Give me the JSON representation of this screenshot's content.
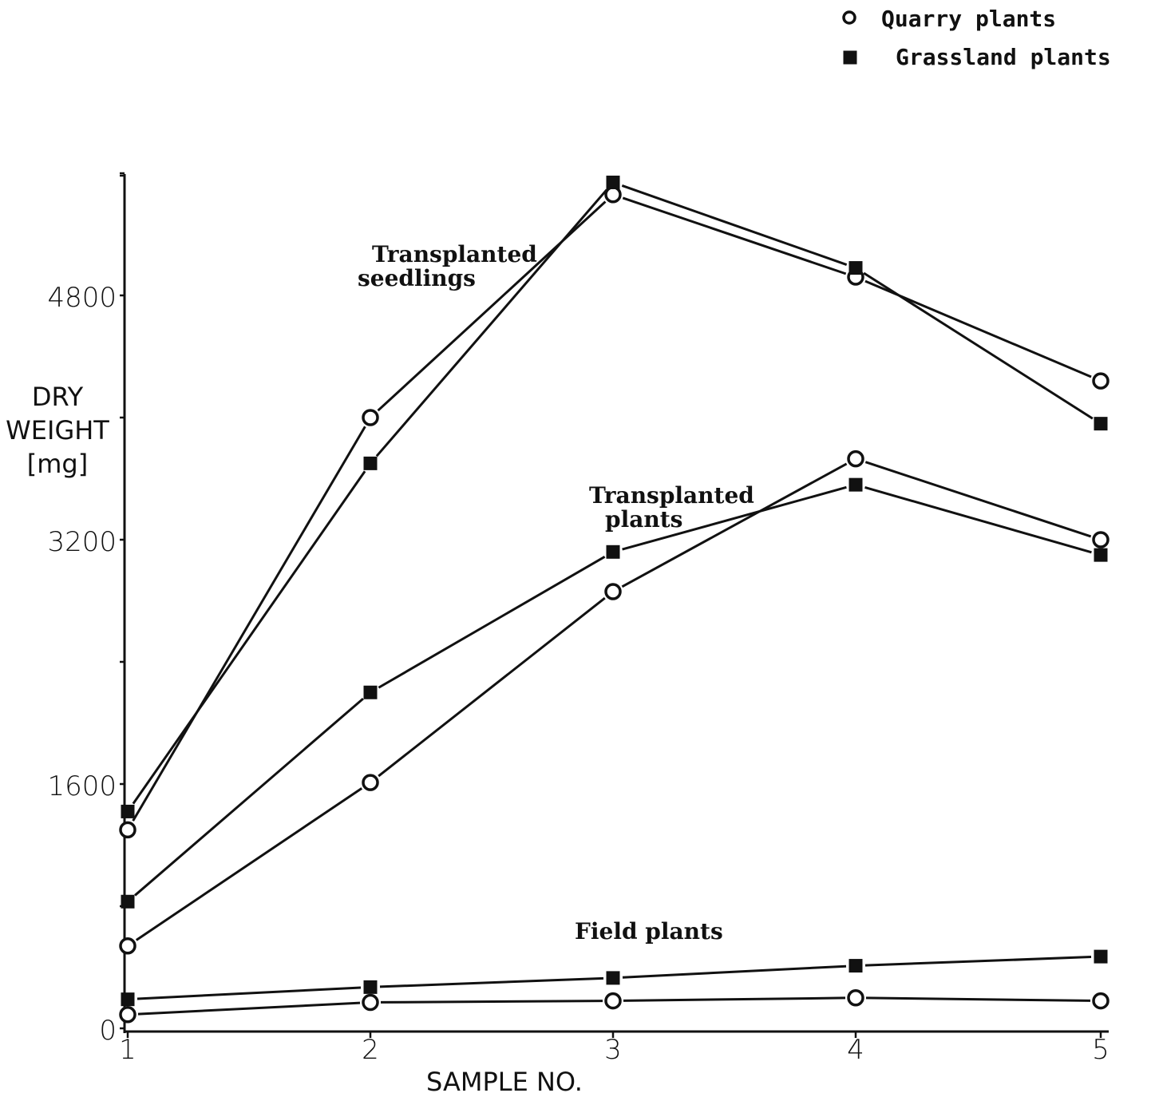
{
  "chart_data": {
    "type": "line",
    "categories": [
      "1",
      "2",
      "3",
      "4",
      "5"
    ],
    "xlabel": "SAMPLE NO.",
    "ylabel": [
      "DRY",
      "WEIGHT",
      "[mg]"
    ],
    "ylim": [
      0,
      5700
    ],
    "yticks": [
      0,
      800,
      1600,
      2400,
      3200,
      4000,
      4800,
      5600
    ],
    "ytick_labels": [
      "0",
      "",
      "1600",
      "",
      "3200",
      "",
      "4800",
      ""
    ],
    "legend": {
      "position": "top-right",
      "entries": [
        {
          "label": "Quarry plants",
          "marker": "open-circle"
        },
        {
          "label": "Grassland plants",
          "marker": "filled-square"
        }
      ]
    },
    "groups": [
      {
        "label": [
          "Transplanted",
          "seedlings"
        ],
        "series": [
          {
            "marker": "open-circle",
            "values": [
              1300,
              4000,
              5460,
              4920,
              4240
            ]
          },
          {
            "marker": "filled-square",
            "values": [
              1420,
              3700,
              5540,
              4980,
              3960
            ]
          }
        ]
      },
      {
        "label": [
          "Transplanted",
          "plants"
        ],
        "series": [
          {
            "marker": "open-circle",
            "values": [
              540,
              1610,
              2860,
              3730,
              3200
            ]
          },
          {
            "marker": "filled-square",
            "values": [
              830,
              2200,
              3120,
              3560,
              3100
            ]
          }
        ]
      },
      {
        "label": [
          "Field plants"
        ],
        "series": [
          {
            "marker": "open-circle",
            "values": [
              90,
              170,
              180,
              200,
              180
            ]
          },
          {
            "marker": "filled-square",
            "values": [
              190,
              270,
              330,
              410,
              470
            ]
          }
        ]
      }
    ]
  }
}
